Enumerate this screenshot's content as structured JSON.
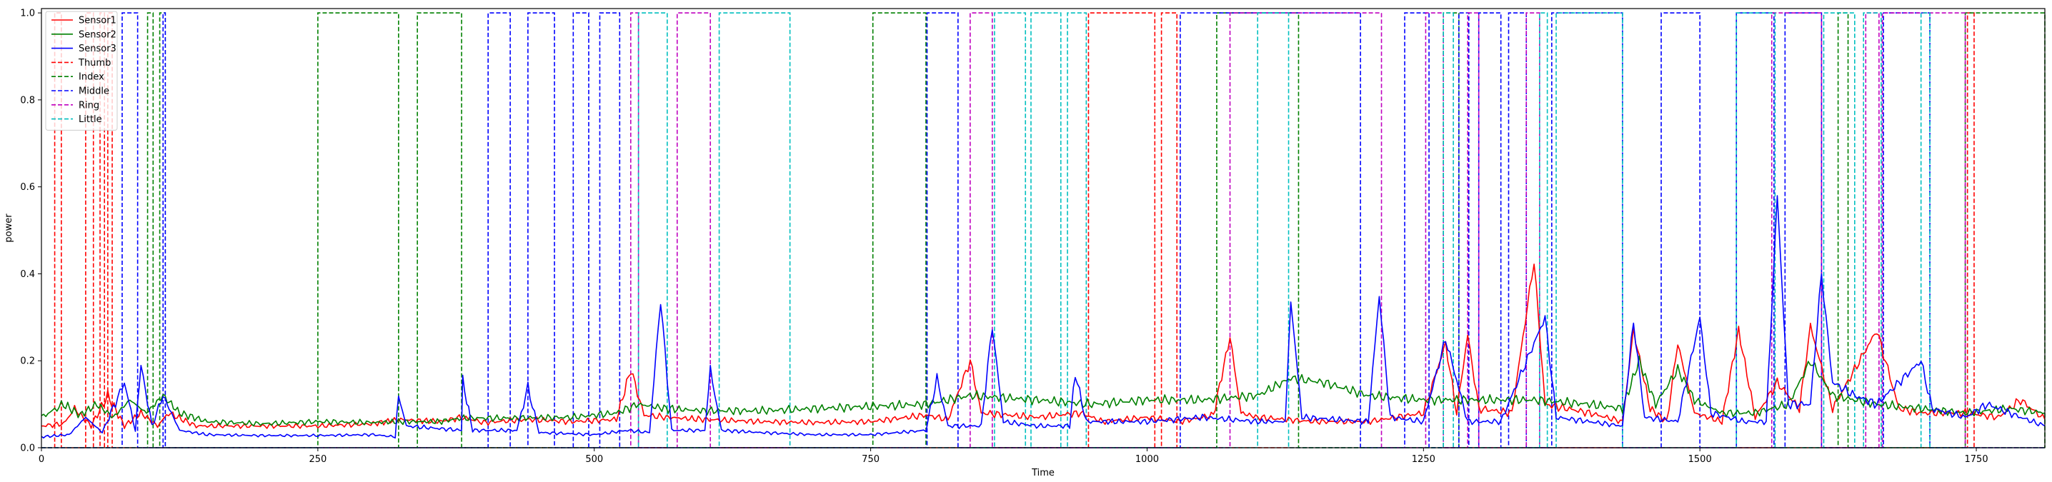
{
  "chart_data": {
    "type": "line",
    "title": "",
    "xlabel": "Time",
    "ylabel": "power",
    "xlim": [
      0,
      1812
    ],
    "ylim": [
      0,
      1.01
    ],
    "xticks": [
      0,
      250,
      500,
      750,
      1000,
      1250,
      1500,
      1750
    ],
    "yticks": [
      0.0,
      0.2,
      0.4,
      0.6,
      0.8,
      1.0
    ],
    "ytick_labels": [
      "0.0",
      "0.2",
      "0.4",
      "0.6",
      "0.8",
      "1.0"
    ],
    "grid": false,
    "legend_position": "top-left",
    "sensor_series": [
      {
        "name": "Sensor1",
        "color": "#ff0000",
        "points": [
          [
            0,
            0.05
          ],
          [
            20,
            0.055
          ],
          [
            30,
            0.09
          ],
          [
            45,
            0.05
          ],
          [
            60,
            0.12
          ],
          [
            75,
            0.05
          ],
          [
            90,
            0.08
          ],
          [
            105,
            0.05
          ],
          [
            115,
            0.08
          ],
          [
            140,
            0.05
          ],
          [
            200,
            0.05
          ],
          [
            250,
            0.05
          ],
          [
            300,
            0.055
          ],
          [
            323,
            0.065
          ],
          [
            360,
            0.06
          ],
          [
            380,
            0.07
          ],
          [
            400,
            0.058
          ],
          [
            440,
            0.065
          ],
          [
            480,
            0.06
          ],
          [
            520,
            0.065
          ],
          [
            533,
            0.18
          ],
          [
            545,
            0.075
          ],
          [
            565,
            0.07
          ],
          [
            600,
            0.065
          ],
          [
            650,
            0.06
          ],
          [
            700,
            0.058
          ],
          [
            750,
            0.06
          ],
          [
            800,
            0.075
          ],
          [
            820,
            0.065
          ],
          [
            840,
            0.2
          ],
          [
            850,
            0.08
          ],
          [
            900,
            0.07
          ],
          [
            940,
            0.08
          ],
          [
            960,
            0.06
          ],
          [
            1000,
            0.07
          ],
          [
            1030,
            0.06
          ],
          [
            1060,
            0.075
          ],
          [
            1075,
            0.255
          ],
          [
            1085,
            0.08
          ],
          [
            1100,
            0.07
          ],
          [
            1150,
            0.06
          ],
          [
            1200,
            0.06
          ],
          [
            1250,
            0.08
          ],
          [
            1270,
            0.24
          ],
          [
            1280,
            0.08
          ],
          [
            1290,
            0.26
          ],
          [
            1300,
            0.09
          ],
          [
            1330,
            0.08
          ],
          [
            1350,
            0.43
          ],
          [
            1360,
            0.1
          ],
          [
            1400,
            0.08
          ],
          [
            1430,
            0.06
          ],
          [
            1440,
            0.27
          ],
          [
            1455,
            0.09
          ],
          [
            1470,
            0.06
          ],
          [
            1480,
            0.24
          ],
          [
            1495,
            0.08
          ],
          [
            1520,
            0.06
          ],
          [
            1535,
            0.27
          ],
          [
            1550,
            0.07
          ],
          [
            1570,
            0.15
          ],
          [
            1590,
            0.09
          ],
          [
            1600,
            0.28
          ],
          [
            1620,
            0.09
          ],
          [
            1660,
            0.27
          ],
          [
            1680,
            0.09
          ],
          [
            1700,
            0.08
          ],
          [
            1740,
            0.08
          ],
          [
            1770,
            0.07
          ],
          [
            1790,
            0.11
          ],
          [
            1812,
            0.065
          ]
        ]
      },
      {
        "name": "Sensor2",
        "color": "#008000",
        "points": [
          [
            0,
            0.07
          ],
          [
            20,
            0.1
          ],
          [
            35,
            0.075
          ],
          [
            50,
            0.1
          ],
          [
            65,
            0.07
          ],
          [
            80,
            0.11
          ],
          [
            95,
            0.08
          ],
          [
            110,
            0.12
          ],
          [
            125,
            0.08
          ],
          [
            150,
            0.06
          ],
          [
            200,
            0.055
          ],
          [
            250,
            0.06
          ],
          [
            300,
            0.058
          ],
          [
            323,
            0.06
          ],
          [
            360,
            0.06
          ],
          [
            380,
            0.068
          ],
          [
            420,
            0.068
          ],
          [
            480,
            0.07
          ],
          [
            520,
            0.08
          ],
          [
            540,
            0.1
          ],
          [
            565,
            0.09
          ],
          [
            600,
            0.085
          ],
          [
            650,
            0.085
          ],
          [
            700,
            0.09
          ],
          [
            750,
            0.095
          ],
          [
            800,
            0.1
          ],
          [
            840,
            0.12
          ],
          [
            900,
            0.11
          ],
          [
            950,
            0.1
          ],
          [
            1000,
            0.11
          ],
          [
            1050,
            0.11
          ],
          [
            1100,
            0.12
          ],
          [
            1130,
            0.16
          ],
          [
            1160,
            0.15
          ],
          [
            1200,
            0.12
          ],
          [
            1250,
            0.11
          ],
          [
            1300,
            0.11
          ],
          [
            1350,
            0.11
          ],
          [
            1400,
            0.1
          ],
          [
            1430,
            0.09
          ],
          [
            1445,
            0.2
          ],
          [
            1460,
            0.1
          ],
          [
            1480,
            0.18
          ],
          [
            1495,
            0.11
          ],
          [
            1520,
            0.08
          ],
          [
            1550,
            0.08
          ],
          [
            1580,
            0.1
          ],
          [
            1600,
            0.2
          ],
          [
            1620,
            0.12
          ],
          [
            1660,
            0.1
          ],
          [
            1700,
            0.09
          ],
          [
            1740,
            0.08
          ],
          [
            1780,
            0.09
          ],
          [
            1812,
            0.08
          ]
        ]
      },
      {
        "name": "Sensor3",
        "color": "#0000ff",
        "points": [
          [
            0,
            0.025
          ],
          [
            25,
            0.03
          ],
          [
            40,
            0.07
          ],
          [
            55,
            0.035
          ],
          [
            75,
            0.15
          ],
          [
            85,
            0.04
          ],
          [
            90,
            0.19
          ],
          [
            100,
            0.05
          ],
          [
            110,
            0.12
          ],
          [
            125,
            0.04
          ],
          [
            150,
            0.03
          ],
          [
            200,
            0.028
          ],
          [
            250,
            0.028
          ],
          [
            300,
            0.03
          ],
          [
            320,
            0.025
          ],
          [
            323,
            0.12
          ],
          [
            330,
            0.05
          ],
          [
            380,
            0.04
          ],
          [
            381,
            0.155
          ],
          [
            390,
            0.04
          ],
          [
            430,
            0.04
          ],
          [
            440,
            0.14
          ],
          [
            450,
            0.035
          ],
          [
            500,
            0.03
          ],
          [
            530,
            0.04
          ],
          [
            550,
            0.035
          ],
          [
            560,
            0.34
          ],
          [
            570,
            0.04
          ],
          [
            600,
            0.04
          ],
          [
            605,
            0.18
          ],
          [
            615,
            0.04
          ],
          [
            650,
            0.035
          ],
          [
            700,
            0.03
          ],
          [
            750,
            0.03
          ],
          [
            800,
            0.04
          ],
          [
            810,
            0.16
          ],
          [
            820,
            0.05
          ],
          [
            850,
            0.05
          ],
          [
            860,
            0.28
          ],
          [
            870,
            0.06
          ],
          [
            900,
            0.05
          ],
          [
            930,
            0.05
          ],
          [
            935,
            0.17
          ],
          [
            945,
            0.06
          ],
          [
            1000,
            0.06
          ],
          [
            1050,
            0.07
          ],
          [
            1100,
            0.06
          ],
          [
            1125,
            0.06
          ],
          [
            1130,
            0.34
          ],
          [
            1140,
            0.07
          ],
          [
            1200,
            0.06
          ],
          [
            1210,
            0.35
          ],
          [
            1220,
            0.07
          ],
          [
            1250,
            0.06
          ],
          [
            1270,
            0.25
          ],
          [
            1290,
            0.06
          ],
          [
            1320,
            0.06
          ],
          [
            1360,
            0.3
          ],
          [
            1370,
            0.07
          ],
          [
            1400,
            0.06
          ],
          [
            1430,
            0.05
          ],
          [
            1440,
            0.29
          ],
          [
            1450,
            0.07
          ],
          [
            1480,
            0.06
          ],
          [
            1500,
            0.3
          ],
          [
            1510,
            0.08
          ],
          [
            1540,
            0.06
          ],
          [
            1560,
            0.06
          ],
          [
            1570,
            0.58
          ],
          [
            1580,
            0.1
          ],
          [
            1600,
            0.1
          ],
          [
            1610,
            0.4
          ],
          [
            1620,
            0.15
          ],
          [
            1640,
            0.12
          ],
          [
            1660,
            0.1
          ],
          [
            1700,
            0.2
          ],
          [
            1710,
            0.09
          ],
          [
            1740,
            0.07
          ],
          [
            1760,
            0.1
          ],
          [
            1790,
            0.07
          ],
          [
            1812,
            0.05
          ]
        ]
      }
    ],
    "finger_series": [
      {
        "name": "Thumb",
        "color": "#ff0000",
        "intervals": [
          [
            12,
            18
          ],
          [
            40,
            47
          ],
          [
            53,
            57
          ],
          [
            60,
            64
          ],
          [
            947,
            1007
          ],
          [
            1013,
            1027
          ],
          [
            1742,
            1748
          ]
        ]
      },
      {
        "name": "Index",
        "color": "#008000",
        "intervals": [
          [
            96,
            101
          ],
          [
            107,
            112
          ],
          [
            250,
            323
          ],
          [
            340,
            380
          ],
          [
            752,
            800
          ],
          [
            1063,
            1137
          ],
          [
            1268,
            1282
          ],
          [
            1625,
            1634
          ],
          [
            1740,
            1812
          ]
        ]
      },
      {
        "name": "Middle",
        "color": "#0000ff",
        "intervals": [
          [
            73,
            87
          ],
          [
            110,
            112
          ],
          [
            404,
            424
          ],
          [
            440,
            464
          ],
          [
            481,
            495
          ],
          [
            505,
            523
          ],
          [
            801,
            829
          ],
          [
            1030,
            1193
          ],
          [
            1233,
            1255
          ],
          [
            1282,
            1291
          ],
          [
            1300,
            1320
          ],
          [
            1327,
            1343
          ],
          [
            1366,
            1430
          ],
          [
            1465,
            1500
          ],
          [
            1533,
            1567
          ],
          [
            1577,
            1610
          ],
          [
            1666,
            1708
          ]
        ]
      },
      {
        "name": "Ring",
        "color": "#bf00bf",
        "intervals": [
          [
            533,
            540
          ],
          [
            575,
            605
          ],
          [
            840,
            860
          ],
          [
            1075,
            1212
          ],
          [
            1252,
            1268
          ],
          [
            1290,
            1300
          ],
          [
            1343,
            1355
          ],
          [
            1565,
            1610
          ],
          [
            1650,
            1662
          ],
          [
            1665,
            1740
          ]
        ]
      },
      {
        "name": "Little",
        "color": "#00bfbf",
        "intervals": [
          [
            540,
            566
          ],
          [
            613,
            677
          ],
          [
            862,
            890
          ],
          [
            895,
            922
          ],
          [
            928,
            945
          ],
          [
            1100,
            1128
          ],
          [
            1268,
            1277
          ],
          [
            1355,
            1362
          ],
          [
            1370,
            1430
          ],
          [
            1533,
            1568
          ],
          [
            1612,
            1640
          ],
          [
            1648,
            1664
          ],
          [
            1700,
            1708
          ]
        ]
      }
    ]
  }
}
